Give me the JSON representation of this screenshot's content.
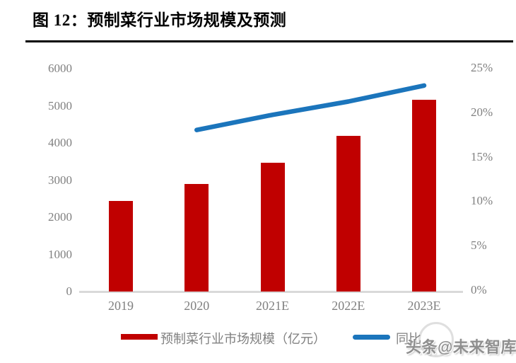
{
  "page": {
    "title": "图 12：预制菜行业市场规模及预测",
    "watermark_text": "头条@未来智库"
  },
  "colors": {
    "bar_red": "#c00000",
    "line_blue": "#1b75bc",
    "axis_text_gray": "#808080",
    "axis_line_gray": "#d9d9d9",
    "title_black": "#000000"
  },
  "chart_data": {
    "type": "bar",
    "subtype": "bar+line combo, dual axis",
    "title": "预制菜行业市场规模及预测",
    "categories": [
      "2019",
      "2020",
      "2021E",
      "2022E",
      "2023E"
    ],
    "series": [
      {
        "name": "预制菜行业市场规模（亿元）",
        "type": "bar",
        "axis": "left",
        "color": "#c00000",
        "values": [
          2445,
          2888,
          3459,
          4196,
          5165
        ]
      },
      {
        "name": "同比",
        "type": "line",
        "axis": "right",
        "color": "#1b75bc",
        "values": [
          null,
          18.1,
          19.8,
          21.3,
          23.1
        ]
      }
    ],
    "left_axis": {
      "min": 0,
      "max": 6000,
      "step": 1000,
      "labels": [
        "0",
        "1000",
        "2000",
        "3000",
        "4000",
        "5000",
        "6000"
      ]
    },
    "right_axis": {
      "min": 0,
      "max": 25,
      "step": 5,
      "unit": "%",
      "labels": [
        "0%",
        "5%",
        "10%",
        "15%",
        "20%",
        "25%"
      ]
    },
    "grid": false,
    "legend_position": "bottom"
  }
}
